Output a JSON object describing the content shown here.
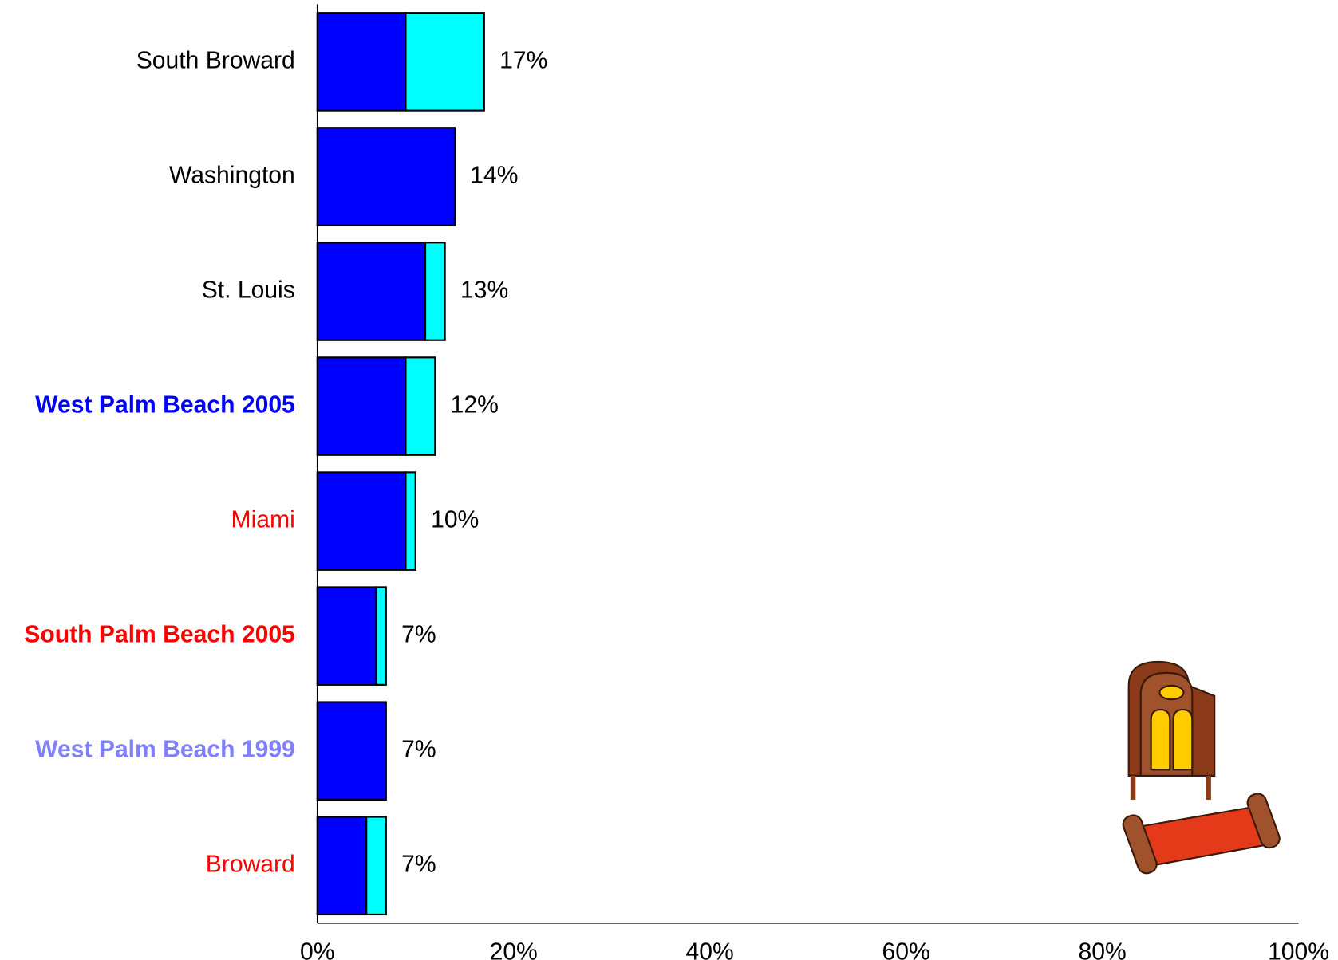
{
  "chart_data": {
    "type": "stacked-bar-horizontal",
    "categories": [
      "South Broward",
      "Washington",
      "St. Louis",
      "West Palm Beach 2005",
      "Miami",
      "South Palm Beach 2005",
      "West Palm Beach 1999",
      "Broward"
    ],
    "label_colors": [
      "#000000",
      "#000000",
      "#000000",
      "#0000ff",
      "#ff0000",
      "#ff0000",
      "#8080ff",
      "#ff0000"
    ],
    "label_bold": [
      false,
      false,
      false,
      true,
      false,
      true,
      true,
      false
    ],
    "series": [
      {
        "color": "#0000ff",
        "values": [
          9,
          14,
          11,
          9,
          9,
          6,
          7,
          5
        ]
      },
      {
        "color": "#00ffff",
        "values": [
          8,
          0,
          2,
          3,
          1,
          1,
          0,
          2
        ]
      }
    ],
    "totals": [
      17,
      14,
      13,
      12,
      10,
      7,
      7,
      7
    ],
    "total_labels": [
      "17%",
      "14%",
      "13%",
      "12%",
      "10%",
      "7%",
      "7%",
      "7%"
    ],
    "xlim": [
      0,
      100
    ],
    "xticks": [
      {
        "value": 0,
        "label": "0%"
      },
      {
        "value": 20,
        "label": "20%"
      },
      {
        "value": 40,
        "label": "40%"
      },
      {
        "value": 60,
        "label": "60%"
      },
      {
        "value": 80,
        "label": "80%"
      },
      {
        "value": 100,
        "label": "100%"
      }
    ],
    "grid": false
  }
}
